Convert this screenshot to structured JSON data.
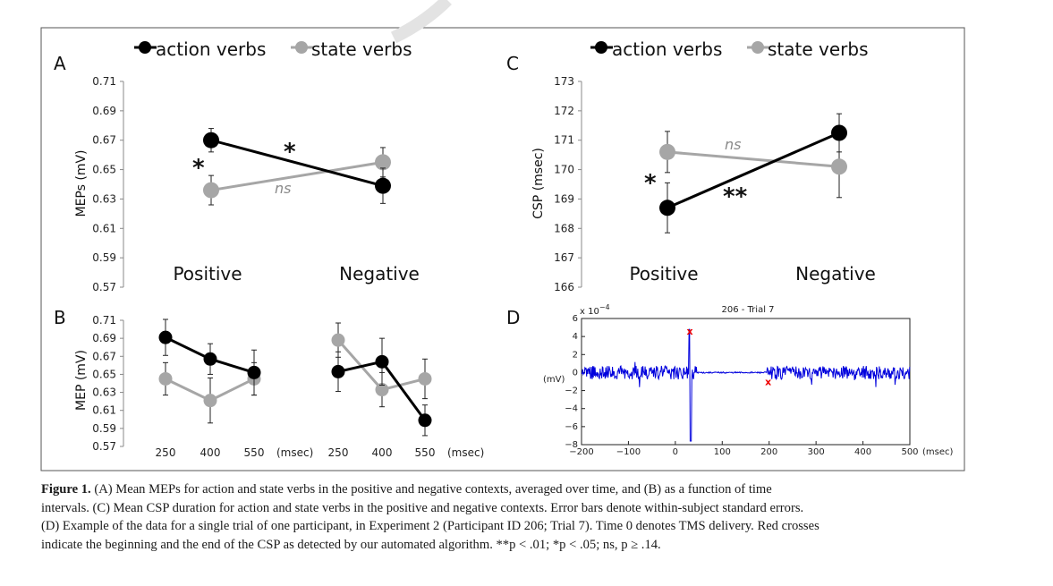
{
  "panels": {
    "A": {
      "letter": "A",
      "ylabel": "MEPs (mV)"
    },
    "B": {
      "letter": "B",
      "ylabel": "MEP (mV)"
    },
    "C": {
      "letter": "C",
      "ylabel": "CSP (msec)"
    },
    "D": {
      "letter": "D",
      "ylabel": "(mV)",
      "title": "206 - Trial 7",
      "exponent": "x 10",
      "exponent_power": "−4",
      "xunit": "(msec)"
    }
  },
  "legend": {
    "action": "action verbs",
    "state": "state verbs"
  },
  "colors": {
    "action": "#000000",
    "state": "#a6a6a6",
    "trace": "#0000dd",
    "marker": "#ee0000"
  },
  "annotations": {
    "A_star_1": "*",
    "A_star_2": "*",
    "A_ns": "ns",
    "C_star_1": "*",
    "C_star_2": "**",
    "C_ns": "ns"
  },
  "chart_data": [
    {
      "id": "A",
      "type": "line",
      "categories": [
        "Positive",
        "Negative"
      ],
      "ylim": [
        0.57,
        0.71
      ],
      "yticks": [
        "0.57",
        "0.59",
        "0.61",
        "0.63",
        "0.65",
        "0.67",
        "0.69",
        "0.71"
      ],
      "series": [
        {
          "name": "action verbs",
          "values": [
            0.67,
            0.639
          ],
          "errors": [
            0.008,
            0.012
          ]
        },
        {
          "name": "state verbs",
          "values": [
            0.636,
            0.655
          ],
          "errors": [
            0.01,
            0.01
          ]
        }
      ]
    },
    {
      "id": "B",
      "type": "line",
      "groups": [
        "Positive",
        "Negative"
      ],
      "categories": [
        "250",
        "400",
        "550"
      ],
      "xunit": "(msec)",
      "ylim": [
        0.57,
        0.71
      ],
      "yticks": [
        "0.57",
        "0.59",
        "0.61",
        "0.63",
        "0.65",
        "0.67",
        "0.69",
        "0.71"
      ],
      "series": [
        {
          "name": "action verbs",
          "values": [
            [
              0.691,
              0.667,
              0.652
            ],
            [
              0.653,
              0.664,
              0.599
            ]
          ],
          "errors": [
            [
              0.02,
              0.017,
              0.025
            ],
            [
              0.022,
              0.026,
              0.017
            ]
          ]
        },
        {
          "name": "state verbs",
          "values": [
            [
              0.645,
              0.621,
              0.645
            ],
            [
              0.688,
              0.633,
              0.645
            ]
          ],
          "errors": [
            [
              0.018,
              0.025,
              0.018
            ],
            [
              0.019,
              0.019,
              0.022
            ]
          ]
        }
      ]
    },
    {
      "id": "C",
      "type": "line",
      "categories": [
        "Positive",
        "Negative"
      ],
      "ylim": [
        166,
        173
      ],
      "yticks": [
        "166",
        "167",
        "168",
        "169",
        "170",
        "171",
        "172",
        "173"
      ],
      "series": [
        {
          "name": "action verbs",
          "values": [
            168.7,
            171.25
          ],
          "errors": [
            0.85,
            0.65
          ]
        },
        {
          "name": "state verbs",
          "values": [
            170.6,
            170.1
          ],
          "errors": [
            0.7,
            1.05
          ]
        }
      ]
    },
    {
      "id": "D",
      "type": "line",
      "xlim": [
        -200,
        500
      ],
      "ylim": [
        -8,
        6
      ],
      "xticks": [
        "−200",
        "−100",
        "0",
        "100",
        "200",
        "300",
        "400",
        "500"
      ],
      "yticks": [
        "−8",
        "−6",
        "−4",
        "−2",
        "0",
        "2",
        "4",
        "6"
      ],
      "markers": [
        {
          "x": 31,
          "y": 4.6
        },
        {
          "x": 198,
          "y": -1.0
        }
      ],
      "stimulus_x": 30,
      "silent_period": [
        45,
        195
      ]
    }
  ],
  "caption": {
    "label": "Figure 1.",
    "lines": [
      "(A) Mean MEPs for action and state verbs in the positive and negative contexts, averaged over time, and (B) as a function of time",
      "intervals. (C) Mean CSP duration for action and state verbs in the positive and negative contexts. Error bars denote within-subject standard errors.",
      "(D) Example of the data for a single trial of one participant, in Experiment 2 (Participant ID 206; Trial 7). Time 0 denotes TMS delivery. Red crosses",
      "indicate the beginning and the end of the CSP as detected by our automated algorithm. **p < .01; *p < .05; ns, p ≥ .14."
    ]
  }
}
